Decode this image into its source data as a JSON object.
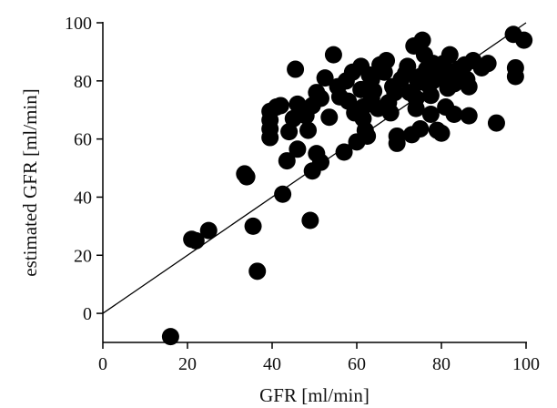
{
  "chart_data": {
    "type": "scatter",
    "xlabel": "GFR [ml/min]",
    "ylabel": "estimated GFR [ml/min]",
    "xlim": [
      0,
      100
    ],
    "ylim": [
      -10,
      100
    ],
    "xticks": [
      0,
      20,
      40,
      60,
      80,
      100
    ],
    "yticks": [
      0,
      20,
      40,
      60,
      80,
      100
    ],
    "grid": false,
    "marker_color": "#000000",
    "line_of_identity": {
      "x": [
        0,
        100
      ],
      "y": [
        0,
        100
      ]
    },
    "series": [
      {
        "points": [
          [
            16,
            -8
          ],
          [
            21,
            25.5
          ],
          [
            22,
            25
          ],
          [
            25,
            28.5
          ],
          [
            33.5,
            48
          ],
          [
            34,
            47
          ],
          [
            35.5,
            30
          ],
          [
            36.5,
            14.5
          ],
          [
            39.5,
            69.5
          ],
          [
            39.5,
            66.5
          ],
          [
            39.5,
            63.5
          ],
          [
            39.5,
            60.5
          ],
          [
            41,
            71
          ],
          [
            42,
            71.5
          ],
          [
            42.5,
            41
          ],
          [
            43.5,
            52.5
          ],
          [
            44,
            62.5
          ],
          [
            45,
            67
          ],
          [
            45.5,
            84
          ],
          [
            46,
            72
          ],
          [
            46,
            56.5
          ],
          [
            48,
            68
          ],
          [
            48.5,
            63
          ],
          [
            49,
            32
          ],
          [
            49.5,
            71.5
          ],
          [
            49.5,
            49
          ],
          [
            50.5,
            76
          ],
          [
            50.5,
            55
          ],
          [
            51.5,
            74
          ],
          [
            51.5,
            52
          ],
          [
            52.5,
            81
          ],
          [
            53.5,
            67.5
          ],
          [
            54.5,
            89
          ],
          [
            55.5,
            78
          ],
          [
            56,
            74.5
          ],
          [
            57,
            55.5
          ],
          [
            57.5,
            80
          ],
          [
            58,
            73
          ],
          [
            59,
            83
          ],
          [
            59.5,
            69
          ],
          [
            60,
            59
          ],
          [
            61,
            85
          ],
          [
            61,
            77
          ],
          [
            61.5,
            71
          ],
          [
            61.5,
            67
          ],
          [
            62,
            63
          ],
          [
            62.5,
            61
          ],
          [
            63,
            82
          ],
          [
            63.5,
            80.5
          ],
          [
            63.5,
            74
          ],
          [
            64,
            76.5
          ],
          [
            65,
            70.5
          ],
          [
            65.5,
            85.5
          ],
          [
            66.5,
            83
          ],
          [
            67,
            87
          ],
          [
            67.5,
            72.5
          ],
          [
            68,
            69
          ],
          [
            68.5,
            78
          ],
          [
            69,
            76
          ],
          [
            69.5,
            61
          ],
          [
            69.5,
            58.5
          ],
          [
            70.5,
            80.5
          ],
          [
            71.5,
            82.5
          ],
          [
            72,
            85
          ],
          [
            72.5,
            76
          ],
          [
            73,
            61.5
          ],
          [
            73.5,
            92
          ],
          [
            74,
            74
          ],
          [
            74,
            70.5
          ],
          [
            74.5,
            79.5
          ],
          [
            75,
            81.5
          ],
          [
            75,
            63.5
          ],
          [
            75.5,
            94
          ],
          [
            76,
            89
          ],
          [
            76.5,
            84
          ],
          [
            77,
            78.5
          ],
          [
            77.5,
            75
          ],
          [
            77.5,
            68.5
          ],
          [
            78,
            86
          ],
          [
            78,
            80
          ],
          [
            79,
            63
          ],
          [
            79.5,
            81
          ],
          [
            80,
            62
          ],
          [
            80.5,
            86
          ],
          [
            81,
            71
          ],
          [
            81.5,
            77.5
          ],
          [
            82,
            89
          ],
          [
            82.5,
            83
          ],
          [
            83,
            79
          ],
          [
            83,
            68.5
          ],
          [
            84,
            84
          ],
          [
            85,
            81.5
          ],
          [
            85.5,
            85.5
          ],
          [
            86,
            80.5
          ],
          [
            86.5,
            78
          ],
          [
            86.5,
            68
          ],
          [
            87.5,
            87
          ],
          [
            89.5,
            84.5
          ],
          [
            91,
            86
          ],
          [
            93,
            65.5
          ],
          [
            97,
            96
          ],
          [
            97.5,
            84.5
          ],
          [
            97.5,
            81.5
          ],
          [
            99.5,
            94
          ]
        ]
      }
    ]
  }
}
